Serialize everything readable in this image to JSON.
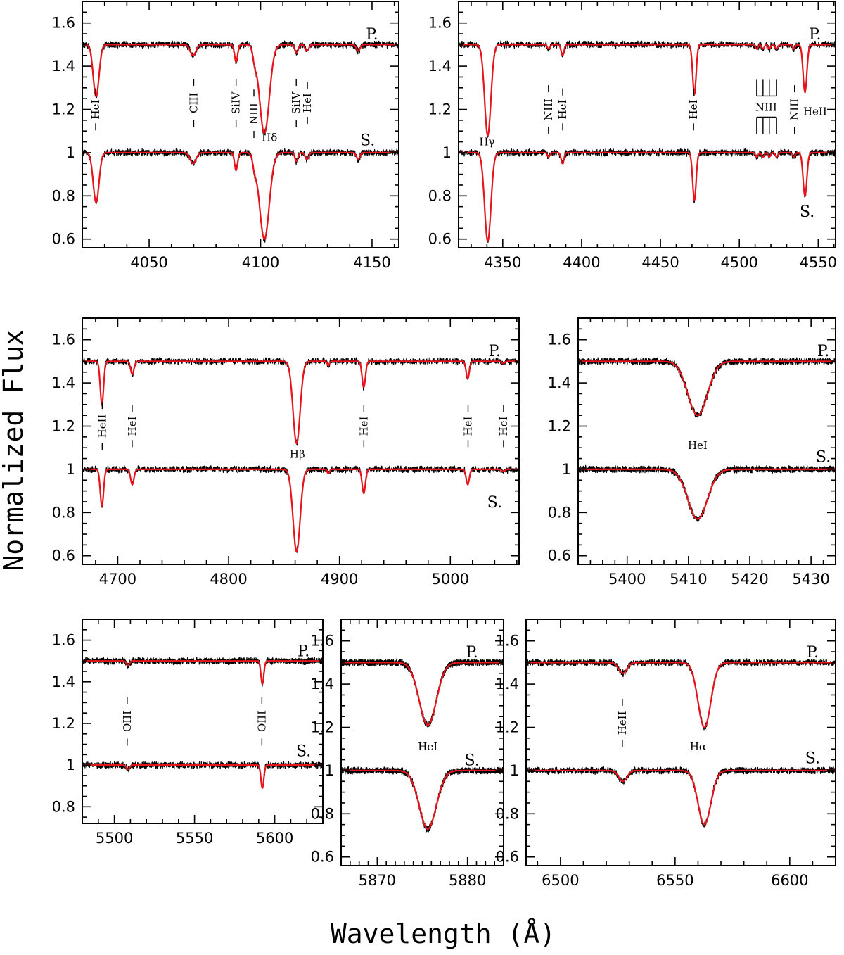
{
  "figure": {
    "ylabel": "Normalized Flux",
    "xlabel": "Wavelength (Å)",
    "colors": {
      "observed": "#000000",
      "model": "#e8141c"
    }
  },
  "chart_data": [
    {
      "type": "line",
      "xlim": [
        4020,
        4162
      ],
      "ylim": [
        0.56,
        1.7
      ],
      "xticks": [
        4050,
        4100,
        4150
      ],
      "yticks": [
        0.6,
        0.8,
        1,
        1.2,
        1.4,
        1.6
      ],
      "ytick_labels": [
        "0.6",
        "0.8",
        "1",
        "1.2",
        "1.4",
        "1.6"
      ],
      "series": [
        {
          "name": "P.",
          "offset": 1.5
        },
        {
          "name": "S.",
          "offset": 1.0
        }
      ],
      "star_labels": [
        {
          "text": "P.",
          "x": 4150,
          "y": 1.55
        },
        {
          "text": "S.",
          "x": 4148,
          "y": 1.06
        }
      ],
      "lines": [
        {
          "center": 4026.2,
          "depth_p": 0.24,
          "depth_s": 0.23,
          "width": 1.3
        },
        {
          "center": 4069.7,
          "depth_p": 0.05,
          "depth_s": 0.05,
          "width": 1.3
        },
        {
          "center": 4089.0,
          "depth_p": 0.08,
          "depth_s": 0.08,
          "width": 0.7
        },
        {
          "center": 4097.3,
          "depth_p": 0.05,
          "depth_s": 0.05,
          "width": 0.8
        },
        {
          "center": 4101.7,
          "depth_p": 0.41,
          "depth_s": 0.4,
          "width": 2.2
        },
        {
          "center": 4116.1,
          "depth_p": 0.04,
          "depth_s": 0.04,
          "width": 0.7
        },
        {
          "center": 4120.8,
          "depth_p": 0.03,
          "depth_s": 0.03,
          "width": 0.8
        },
        {
          "center": 4143.8,
          "depth_p": 0.03,
          "depth_s": 0.03,
          "width": 0.8
        }
      ],
      "annotations": [
        {
          "text": "HeI",
          "x": 4026,
          "y": 1.2,
          "rotate": true
        },
        {
          "text": "CIII",
          "x": 4070,
          "y": 1.23,
          "rotate": true
        },
        {
          "text": "SiIV",
          "x": 4089,
          "y": 1.23,
          "rotate": true
        },
        {
          "text": "NIII",
          "x": 4097,
          "y": 1.18,
          "rotate": true
        },
        {
          "text": "Hδ",
          "x": 4104,
          "y": 1.07,
          "rotate": false
        },
        {
          "text": "SiIV",
          "x": 4116,
          "y": 1.23,
          "rotate": true
        },
        {
          "text": "HeI",
          "x": 4121,
          "y": 1.23,
          "rotate": true
        }
      ]
    },
    {
      "type": "line",
      "xlim": [
        4322,
        4561
      ],
      "ylim": [
        0.56,
        1.7
      ],
      "xticks": [
        4350,
        4400,
        4450,
        4500,
        4550
      ],
      "yticks": [
        0.6,
        0.8,
        1,
        1.2,
        1.4,
        1.6
      ],
      "ytick_labels": [
        "0.6",
        "0.8",
        "1",
        "1.2",
        "1.4",
        "1.6"
      ],
      "series": [
        {
          "name": "P.",
          "offset": 1.5
        },
        {
          "name": "S.",
          "offset": 1.0
        }
      ],
      "star_labels": [
        {
          "text": "P.",
          "x": 4548,
          "y": 1.55
        },
        {
          "text": "S.",
          "x": 4543,
          "y": 0.73
        }
      ],
      "lines": [
        {
          "center": 4340.5,
          "depth_p": 0.42,
          "depth_s": 0.41,
          "width": 2.0
        },
        {
          "center": 4379.1,
          "depth_p": 0.02,
          "depth_s": 0.02,
          "width": 0.8
        },
        {
          "center": 4387.9,
          "depth_p": 0.05,
          "depth_s": 0.05,
          "width": 0.9
        },
        {
          "center": 4471.5,
          "depth_p": 0.23,
          "depth_s": 0.22,
          "width": 1.1
        },
        {
          "center": 4511.0,
          "depth_p": 0.02,
          "depth_s": 0.02,
          "width": 0.8
        },
        {
          "center": 4515.0,
          "depth_p": 0.02,
          "depth_s": 0.02,
          "width": 0.8
        },
        {
          "center": 4519.0,
          "depth_p": 0.02,
          "depth_s": 0.02,
          "width": 0.8
        },
        {
          "center": 4523.6,
          "depth_p": 0.02,
          "depth_s": 0.02,
          "width": 0.8
        },
        {
          "center": 4534.6,
          "depth_p": 0.02,
          "depth_s": 0.02,
          "width": 0.8
        },
        {
          "center": 4541.6,
          "depth_p": 0.22,
          "depth_s": 0.2,
          "width": 1.2
        }
      ],
      "annotations": [
        {
          "text": "Hγ",
          "x": 4340,
          "y": 1.05,
          "rotate": false
        },
        {
          "text": "NIII",
          "x": 4379,
          "y": 1.2,
          "rotate": true
        },
        {
          "text": "HeI",
          "x": 4388,
          "y": 1.2,
          "rotate": true
        },
        {
          "text": "HeI",
          "x": 4471,
          "y": 1.2,
          "rotate": true
        },
        {
          "text": "NIII",
          "x": 4517,
          "y": 1.21,
          "rotate": false
        },
        {
          "text": "NIII",
          "x": 4535,
          "y": 1.2,
          "rotate": true
        },
        {
          "text": "HeII",
          "x": 4548,
          "y": 1.19,
          "rotate": false
        }
      ]
    },
    {
      "type": "line",
      "xlim": [
        4668,
        5062
      ],
      "ylim": [
        0.56,
        1.7
      ],
      "xticks": [
        4700,
        4800,
        4900,
        5000
      ],
      "yticks": [
        0.6,
        0.8,
        1,
        1.2,
        1.4,
        1.6
      ],
      "ytick_labels": [
        "0.6",
        "0.8",
        "1",
        "1.2",
        "1.4",
        "1.6"
      ],
      "series": [
        {
          "name": "P.",
          "offset": 1.5
        },
        {
          "name": "S.",
          "offset": 1.0
        }
      ],
      "star_labels": [
        {
          "text": "P.",
          "x": 5040,
          "y": 1.55
        },
        {
          "text": "S.",
          "x": 5040,
          "y": 0.85
        }
      ],
      "lines": [
        {
          "center": 4685.7,
          "depth_p": 0.2,
          "depth_s": 0.17,
          "width": 1.5
        },
        {
          "center": 4713.1,
          "depth_p": 0.06,
          "depth_s": 0.07,
          "width": 1.5
        },
        {
          "center": 4861.3,
          "depth_p": 0.38,
          "depth_s": 0.38,
          "width": 3.2
        },
        {
          "center": 4890.0,
          "depth_p": 0.02,
          "depth_s": 0.02,
          "width": 1.0
        },
        {
          "center": 4921.9,
          "depth_p": 0.12,
          "depth_s": 0.11,
          "width": 1.5
        },
        {
          "center": 5015.7,
          "depth_p": 0.08,
          "depth_s": 0.07,
          "width": 1.4
        },
        {
          "center": 5047.7,
          "depth_p": 0.01,
          "depth_s": 0.01,
          "width": 1.4
        }
      ],
      "annotations": [
        {
          "text": "HeII",
          "x": 4686,
          "y": 1.2,
          "rotate": true
        },
        {
          "text": "HeI",
          "x": 4713,
          "y": 1.2,
          "rotate": true
        },
        {
          "text": "Hβ",
          "x": 4862,
          "y": 1.07,
          "rotate": false
        },
        {
          "text": "HeI",
          "x": 4922,
          "y": 1.2,
          "rotate": true
        },
        {
          "text": "HeI",
          "x": 5016,
          "y": 1.2,
          "rotate": true
        },
        {
          "text": "HeI",
          "x": 5048,
          "y": 1.2,
          "rotate": true
        }
      ]
    },
    {
      "type": "line",
      "xlim": [
        5392,
        5434
      ],
      "ylim": [
        0.56,
        1.7
      ],
      "xticks": [
        5400,
        5410,
        5420,
        5430
      ],
      "yticks": [
        0.6,
        0.8,
        1,
        1.2,
        1.4,
        1.6
      ],
      "ytick_labels": [
        "0.6",
        "0.8",
        "1",
        "1.2",
        "1.4",
        "1.6"
      ],
      "series": [
        {
          "name": "P.",
          "offset": 1.5
        },
        {
          "name": "S.",
          "offset": 1.0
        }
      ],
      "star_labels": [
        {
          "text": "P.",
          "x": 5432,
          "y": 1.55
        },
        {
          "text": "S.",
          "x": 5432,
          "y": 1.06
        }
      ],
      "lines": [
        {
          "center": 5411.5,
          "depth_p": 0.25,
          "depth_s": 0.23,
          "width": 1.6
        }
      ],
      "annotations": [
        {
          "text": "HeI",
          "x": 5411.5,
          "y": 1.11,
          "rotate": false
        }
      ]
    },
    {
      "type": "line",
      "xlim": [
        5480,
        5630
      ],
      "ylim": [
        0.72,
        1.7
      ],
      "xticks": [
        5500,
        5550,
        5600
      ],
      "yticks": [
        0.8,
        1,
        1.2,
        1.4,
        1.6
      ],
      "ytick_labels": [
        "0.8",
        "1",
        "1.2",
        "1.4",
        "1.6"
      ],
      "series": [
        {
          "name": "P.",
          "offset": 1.5
        },
        {
          "name": "S.",
          "offset": 1.0
        }
      ],
      "star_labels": [
        {
          "text": "P.",
          "x": 5618,
          "y": 1.55
        },
        {
          "text": "S.",
          "x": 5618,
          "y": 1.07
        }
      ],
      "lines": [
        {
          "center": 5508.5,
          "depth_p": 0.02,
          "depth_s": 0.02,
          "width": 1.0
        },
        {
          "center": 5592.3,
          "depth_p": 0.11,
          "depth_s": 0.11,
          "width": 0.9
        }
      ],
      "annotations": [
        {
          "text": "OIII",
          "x": 5508,
          "y": 1.21,
          "rotate": true
        },
        {
          "text": "OIII",
          "x": 5592,
          "y": 1.21,
          "rotate": true
        }
      ]
    },
    {
      "type": "line",
      "xlim": [
        5866,
        5884
      ],
      "ylim": [
        0.56,
        1.7
      ],
      "xticks": [
        5870,
        5880
      ],
      "yticks": [
        0.6,
        0.8,
        1,
        1.2,
        1.4,
        1.6
      ],
      "ytick_labels": [
        "0.6",
        "0.8",
        "1",
        "1.2",
        "1.4",
        "1.6"
      ],
      "series": [
        {
          "name": "P.",
          "offset": 1.5
        },
        {
          "name": "S.",
          "offset": 1.0
        }
      ],
      "star_labels": [
        {
          "text": "P.",
          "x": 5880.5,
          "y": 1.55
        },
        {
          "text": "S.",
          "x": 5880.5,
          "y": 1.05
        }
      ],
      "lines": [
        {
          "center": 5875.6,
          "depth_p": 0.29,
          "depth_s": 0.27,
          "width": 0.95
        }
      ],
      "annotations": [
        {
          "text": "HeI",
          "x": 5875.6,
          "y": 1.11,
          "rotate": false
        }
      ]
    },
    {
      "type": "line",
      "xlim": [
        6485,
        6620
      ],
      "ylim": [
        0.56,
        1.7
      ],
      "xticks": [
        6500,
        6550,
        6600
      ],
      "yticks": [
        0.6,
        0.8,
        1,
        1.2,
        1.4,
        1.6
      ],
      "ytick_labels": [
        "0.6",
        "0.8",
        "1",
        "1.2",
        "1.4",
        "1.6"
      ],
      "series": [
        {
          "name": "P.",
          "offset": 1.5
        },
        {
          "name": "S.",
          "offset": 1.0
        }
      ],
      "star_labels": [
        {
          "text": "P.",
          "x": 6610,
          "y": 1.55
        },
        {
          "text": "S.",
          "x": 6610,
          "y": 1.06
        }
      ],
      "lines": [
        {
          "center": 6527.2,
          "depth_p": 0.05,
          "depth_s": 0.05,
          "width": 1.8
        },
        {
          "center": 6562.8,
          "depth_p": 0.3,
          "depth_s": 0.25,
          "width": 2.8
        }
      ],
      "annotations": [
        {
          "text": "HeII",
          "x": 6527,
          "y": 1.22,
          "rotate": true
        },
        {
          "text": "Hα",
          "x": 6560,
          "y": 1.11,
          "rotate": false
        }
      ]
    }
  ]
}
